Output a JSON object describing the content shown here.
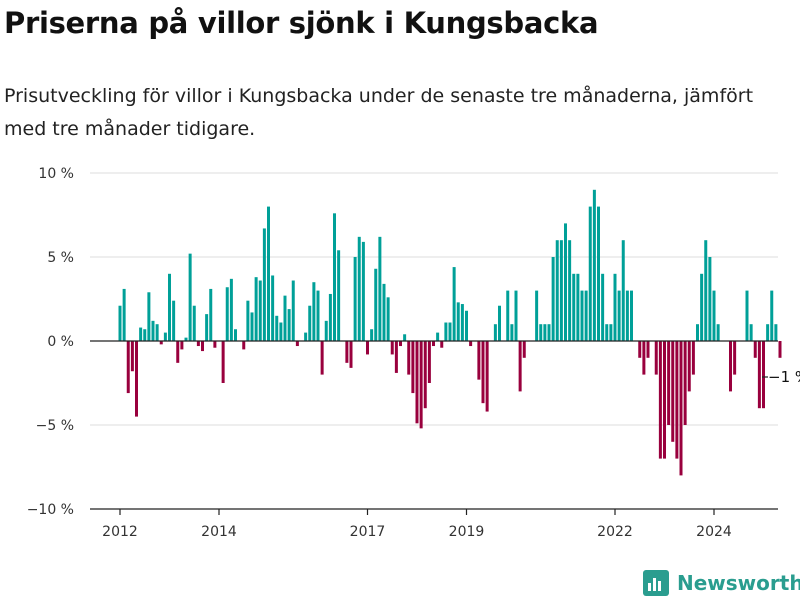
{
  "header": {
    "title": "Priserna på villor sjönk i Kungsbacka",
    "subtitle": "Prisutveckling för villor i Kungsbacka under de senaste tre månaderna, jämfört med tre månader tidigare."
  },
  "brand": {
    "name": "Newsworthy",
    "icon": "newsworthy-logo-icon"
  },
  "colors": {
    "positive": "#00a098",
    "negative": "#99003d",
    "grid": "#dddddd",
    "axis": "#222222"
  },
  "chart_data": {
    "type": "bar",
    "ylim": [
      -10,
      10
    ],
    "y_ticks": [
      {
        "value": 10,
        "label": "10 %"
      },
      {
        "value": 5,
        "label": "5 %"
      },
      {
        "value": 0,
        "label": "0 %"
      },
      {
        "value": -5,
        "label": "−5 %"
      },
      {
        "value": -10,
        "label": "−10 %"
      }
    ],
    "x_ticks": [
      {
        "index": 0,
        "label": "2012"
      },
      {
        "index": 24,
        "label": "2014"
      },
      {
        "index": 60,
        "label": "2017"
      },
      {
        "index": 84,
        "label": "2019"
      },
      {
        "index": 120,
        "label": "2022"
      },
      {
        "index": 144,
        "label": "2024"
      }
    ],
    "grid": true,
    "first_period": "2012-01",
    "values": [
      2.1,
      3.1,
      -3.1,
      -1.8,
      -4.5,
      0.8,
      0.7,
      2.9,
      1.2,
      1.0,
      -0.2,
      0.5,
      4.0,
      2.4,
      -1.3,
      -0.5,
      0.2,
      5.2,
      2.1,
      -0.3,
      -0.6,
      1.6,
      3.1,
      -0.4,
      0.0,
      -2.5,
      3.2,
      3.7,
      0.7,
      0.0,
      -0.5,
      2.4,
      1.7,
      3.8,
      3.6,
      6.7,
      8.0,
      3.9,
      1.5,
      1.1,
      2.7,
      1.9,
      3.6,
      -0.3,
      0.0,
      0.5,
      2.1,
      3.5,
      3.0,
      -2.0,
      1.2,
      2.8,
      7.6,
      5.4,
      0.0,
      -1.3,
      -1.6,
      5.0,
      6.2,
      5.9,
      -0.8,
      0.7,
      4.3,
      6.2,
      3.4,
      2.6,
      -0.8,
      -1.9,
      -0.3,
      0.4,
      -2.0,
      -3.1,
      -4.9,
      -5.2,
      -4.0,
      -2.5,
      -0.3,
      0.5,
      -0.4,
      1.1,
      1.1,
      4.4,
      2.3,
      2.2,
      1.8,
      -0.3,
      0.0,
      -2.3,
      -3.7,
      -4.2,
      0.0,
      1.0,
      2.1,
      0.0,
      3.0,
      1.0,
      3.0,
      -3.0,
      -1.0,
      0.0,
      0.0,
      3.0,
      1.0,
      1.0,
      1.0,
      5.0,
      6.0,
      6.0,
      7.0,
      6.0,
      4.0,
      4.0,
      3.0,
      3.0,
      8.0,
      9.0,
      8.0,
      4.0,
      1.0,
      1.0,
      4.0,
      3.0,
      6.0,
      3.0,
      3.0,
      0.0,
      -1.0,
      -2.0,
      -1.0,
      0.0,
      -2.0,
      -7.0,
      -7.0,
      -5.0,
      -6.0,
      -7.0,
      -8.0,
      -5.0,
      -3.0,
      -2.0,
      1.0,
      4.0,
      6.0,
      5.0,
      3.0,
      1.0,
      0.0,
      0.0,
      -3.0,
      -2.0,
      0.0,
      0.0,
      3.0,
      1.0,
      -1.0,
      -4.0,
      -4.0,
      1.0,
      3.0,
      1.0,
      -1.0
    ],
    "end_label": "−1 %"
  }
}
